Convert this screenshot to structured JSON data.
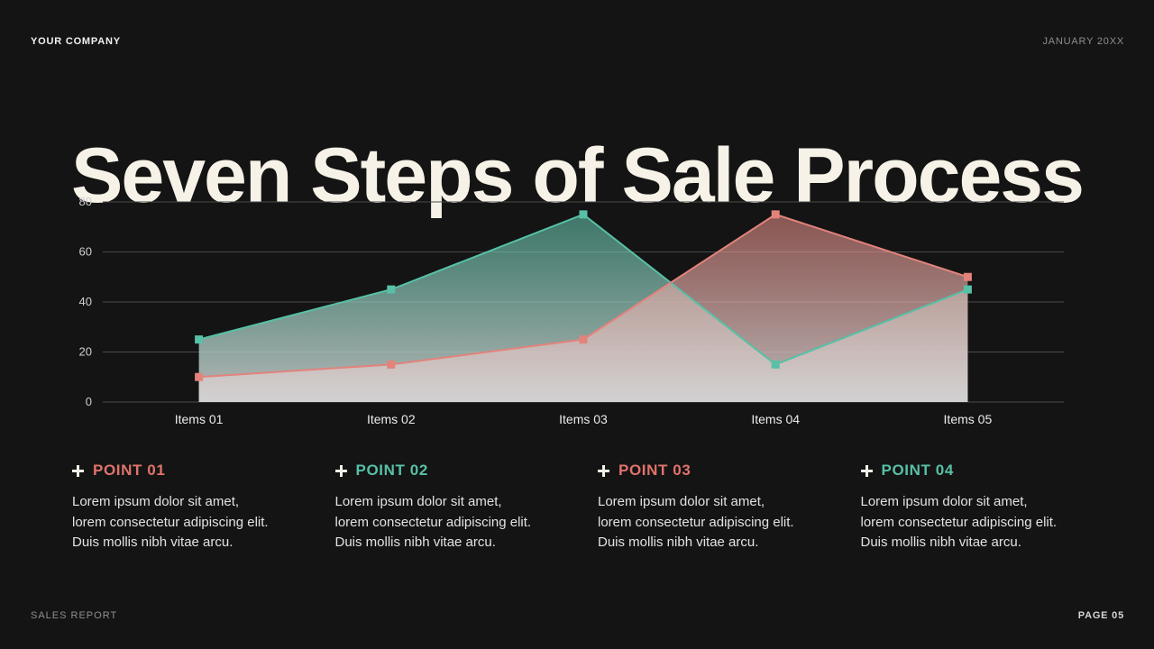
{
  "header": {
    "company": "YOUR COMPANY",
    "date": "JANUARY 20XX"
  },
  "title": "Seven Steps of Sale Process",
  "chart_data": {
    "type": "area",
    "categories": [
      "Items 01",
      "Items 02",
      "Items 03",
      "Items 04",
      "Items 05"
    ],
    "series": [
      {
        "name": "green-series",
        "color": "#57c0a6",
        "values": [
          25,
          45,
          75,
          15,
          45
        ]
      },
      {
        "name": "red-series",
        "color": "#e2837c",
        "values": [
          10,
          15,
          25,
          75,
          50
        ]
      }
    ],
    "ylim": [
      0,
      80
    ],
    "yticks": [
      0,
      20,
      40,
      60,
      80
    ],
    "grid": true,
    "legend": "none",
    "marker": "square",
    "grid_color": "#4a4a4a",
    "tick_color": "#cfcfcf",
    "xlabel_color": "#ececec",
    "area_fade_color": "#d6d6d6"
  },
  "points": [
    {
      "label": "POINT 01",
      "color": "#e0736c",
      "icon": "plus-icon",
      "body": "Lorem ipsum dolor sit amet,\nlorem consectetur adipiscing elit.\nDuis mollis nibh vitae arcu."
    },
    {
      "label": "POINT 02",
      "color": "#57c0a6",
      "icon": "plus-icon",
      "body": "Lorem ipsum dolor sit amet,\nlorem consectetur adipiscing elit.\nDuis mollis nibh vitae arcu."
    },
    {
      "label": "POINT 03",
      "color": "#e0736c",
      "icon": "plus-icon",
      "body": "Lorem ipsum dolor sit amet,\nlorem consectetur adipiscing elit.\nDuis mollis nibh vitae arcu."
    },
    {
      "label": "POINT 04",
      "color": "#57c0a6",
      "icon": "plus-icon",
      "body": "Lorem ipsum dolor sit amet,\nlorem consectetur adipiscing elit.\nDuis mollis nibh vitae arcu."
    }
  ],
  "footer": {
    "left": "SALES REPORT",
    "right": "PAGE 05"
  }
}
